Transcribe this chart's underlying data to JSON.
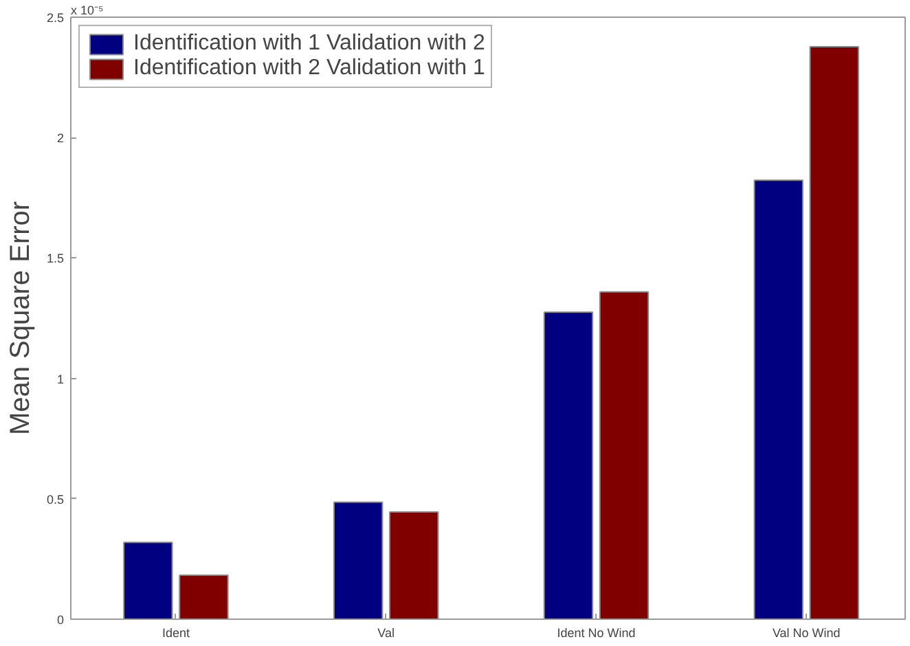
{
  "chart_data": {
    "type": "bar",
    "ylabel": "Mean Square Error",
    "categories": [
      "Ident",
      "Val",
      "Ident No Wind",
      "Val No Wind"
    ],
    "series": [
      {
        "name": "Identification with 1 Validation with 2",
        "color": "#000080",
        "values": [
          0.319,
          0.486,
          1.275,
          1.823
        ]
      },
      {
        "name": "Identification with 2 Validation with 1",
        "color": "#800000",
        "values": [
          0.183,
          0.445,
          1.359,
          2.377
        ]
      }
    ],
    "ylim": [
      0,
      2.5
    ],
    "yticks": [
      0,
      0.5,
      1,
      1.5,
      2,
      2.5
    ],
    "annotations": [
      "x 10⁻⁵"
    ],
    "grid": false,
    "legend": "top left"
  }
}
